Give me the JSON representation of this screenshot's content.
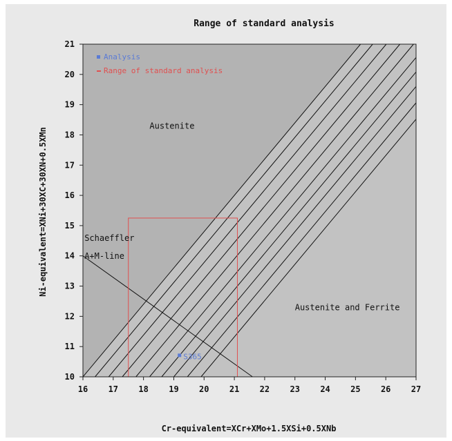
{
  "chart_data": {
    "type": "line",
    "title": "Range of standard analysis",
    "xlabel": "Cr-equivalent=XCr+XMo+1.5XSi+0.5XNb",
    "ylabel": "Ni-equivalent=XNi+30XC+30XN+0.5XMn",
    "xlim": [
      16,
      27
    ],
    "ylim": [
      10,
      21
    ],
    "x_ticks": [
      "16",
      "17",
      "18",
      "19",
      "20",
      "21",
      "22",
      "23",
      "24",
      "25",
      "26",
      "27"
    ],
    "y_ticks": [
      "10",
      "11",
      "12",
      "13",
      "14",
      "15",
      "16",
      "17",
      "18",
      "19",
      "20",
      "21"
    ],
    "grid": false,
    "legend_position": "top-left",
    "legend": [
      {
        "label": "Analysis",
        "color": "#5b7bd5",
        "marker": "square"
      },
      {
        "label": "Range of standard analysis",
        "color": "#e05050",
        "marker": "line"
      }
    ],
    "ferrite_lines": [
      {
        "x0": 16.0,
        "x1": 27.0
      },
      {
        "x0": 16.4,
        "x1": 27.0
      },
      {
        "x0": 16.85,
        "x1": 27.0
      },
      {
        "x0": 17.3,
        "x1": 27.0
      },
      {
        "x0": 17.75,
        "x1": 27.0
      },
      {
        "x0": 18.2,
        "x1": 27.0
      },
      {
        "x0": 18.6,
        "x1": 27.0
      },
      {
        "x0": 19.0,
        "x1": 27.0
      },
      {
        "x0": 19.45,
        "x1": 27.0
      },
      {
        "x0": 19.9,
        "x1": 27.0
      }
    ],
    "ferrite_line_slope": 1.2,
    "schaeffler_line": {
      "x": [
        16.0,
        21.6
      ],
      "y": [
        14.0,
        10.0
      ]
    },
    "standard_range": {
      "x": [
        17.5,
        21.1
      ],
      "y": [
        10.0,
        15.25
      ]
    },
    "analysis_point": {
      "x": 19.2,
      "y": 10.7,
      "label": "S365"
    },
    "annotations": [
      {
        "text": "Austenite",
        "x": 18.2,
        "y": 18.2
      },
      {
        "text": "Austenite and Ferrite",
        "x": 23.0,
        "y": 12.2
      },
      {
        "text": "Schaeffler",
        "x": 16.05,
        "y": 14.5
      },
      {
        "text": "A+M-line",
        "x": 16.05,
        "y": 13.9
      }
    ],
    "colors": {
      "plot_bg": "#c2c2c2",
      "austenite_zone": "#b3b3b3",
      "ferrite_lines": "#111111",
      "range_box": "#e05050",
      "analysis": "#5b7bd5"
    }
  }
}
